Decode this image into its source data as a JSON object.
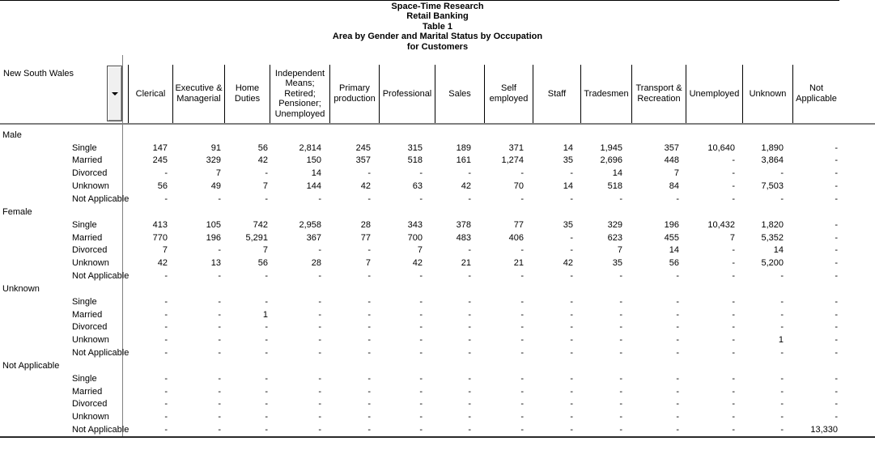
{
  "titles": [
    "Space-Time Research",
    "Retail Banking",
    "Table 1",
    "Area by Gender and Marital Status by Occupation",
    "for Customers"
  ],
  "area_selector": {
    "label": "New South Wales"
  },
  "columns": [
    "Clerical",
    "Executive & Managerial",
    "Home Duties",
    "Independent Means; Retired; Pensioner; Unemployed",
    "Primary production",
    "Professional",
    "Sales",
    "Self employed",
    "Staff",
    "Tradesmen",
    "Transport & Recreation",
    "Unemployed",
    "Unknown",
    "Not Applicable"
  ],
  "groups": [
    {
      "label": "Male",
      "rows": [
        {
          "label": "Single",
          "values": [
            "147",
            "91",
            "56",
            "2,814",
            "245",
            "315",
            "189",
            "371",
            "14",
            "1,945",
            "357",
            "10,640",
            "1,890",
            "-"
          ]
        },
        {
          "label": "Married",
          "values": [
            "245",
            "329",
            "42",
            "150",
            "357",
            "518",
            "161",
            "1,274",
            "35",
            "2,696",
            "448",
            "-",
            "3,864",
            "-"
          ]
        },
        {
          "label": "Divorced",
          "values": [
            "-",
            "7",
            "-",
            "14",
            "-",
            "-",
            "-",
            "-",
            "-",
            "14",
            "7",
            "-",
            "-",
            "-"
          ]
        },
        {
          "label": "Unknown",
          "values": [
            "56",
            "49",
            "7",
            "144",
            "42",
            "63",
            "42",
            "70",
            "14",
            "518",
            "84",
            "-",
            "7,503",
            "-"
          ]
        },
        {
          "label": "Not Applicable",
          "values": [
            "-",
            "-",
            "-",
            "-",
            "-",
            "-",
            "-",
            "-",
            "-",
            "-",
            "-",
            "-",
            "-",
            "-"
          ]
        }
      ]
    },
    {
      "label": "Female",
      "rows": [
        {
          "label": "Single",
          "values": [
            "413",
            "105",
            "742",
            "2,958",
            "28",
            "343",
            "378",
            "77",
            "35",
            "329",
            "196",
            "10,432",
            "1,820",
            "-"
          ]
        },
        {
          "label": "Married",
          "values": [
            "770",
            "196",
            "5,291",
            "367",
            "77",
            "700",
            "483",
            "406",
            "-",
            "623",
            "455",
            "7",
            "5,352",
            "-"
          ]
        },
        {
          "label": "Divorced",
          "values": [
            "7",
            "-",
            "7",
            "-",
            "-",
            "7",
            "-",
            "-",
            "-",
            "7",
            "14",
            "-",
            "14",
            "-"
          ]
        },
        {
          "label": "Unknown",
          "values": [
            "42",
            "13",
            "56",
            "28",
            "7",
            "42",
            "21",
            "21",
            "42",
            "35",
            "56",
            "-",
            "5,200",
            "-"
          ]
        },
        {
          "label": "Not Applicable",
          "values": [
            "-",
            "-",
            "-",
            "-",
            "-",
            "-",
            "-",
            "-",
            "-",
            "-",
            "-",
            "-",
            "-",
            "-"
          ]
        }
      ]
    },
    {
      "label": "Unknown",
      "rows": [
        {
          "label": "Single",
          "values": [
            "-",
            "-",
            "-",
            "-",
            "-",
            "-",
            "-",
            "-",
            "-",
            "-",
            "-",
            "-",
            "-",
            "-"
          ]
        },
        {
          "label": "Married",
          "values": [
            "-",
            "-",
            "1",
            "-",
            "-",
            "-",
            "-",
            "-",
            "-",
            "-",
            "-",
            "-",
            "-",
            "-"
          ]
        },
        {
          "label": "Divorced",
          "values": [
            "-",
            "-",
            "-",
            "-",
            "-",
            "-",
            "-",
            "-",
            "-",
            "-",
            "-",
            "-",
            "-",
            "-"
          ]
        },
        {
          "label": "Unknown",
          "values": [
            "-",
            "-",
            "-",
            "-",
            "-",
            "-",
            "-",
            "-",
            "-",
            "-",
            "-",
            "-",
            "1",
            "-"
          ]
        },
        {
          "label": "Not Applicable",
          "values": [
            "-",
            "-",
            "-",
            "-",
            "-",
            "-",
            "-",
            "-",
            "-",
            "-",
            "-",
            "-",
            "-",
            "-"
          ]
        }
      ]
    },
    {
      "label": "Not Applicable",
      "rows": [
        {
          "label": "Single",
          "values": [
            "-",
            "-",
            "-",
            "-",
            "-",
            "-",
            "-",
            "-",
            "-",
            "-",
            "-",
            "-",
            "-",
            "-"
          ]
        },
        {
          "label": "Married",
          "values": [
            "-",
            "-",
            "-",
            "-",
            "-",
            "-",
            "-",
            "-",
            "-",
            "-",
            "-",
            "-",
            "-",
            "-"
          ]
        },
        {
          "label": "Divorced",
          "values": [
            "-",
            "-",
            "-",
            "-",
            "-",
            "-",
            "-",
            "-",
            "-",
            "-",
            "-",
            "-",
            "-",
            "-"
          ]
        },
        {
          "label": "Unknown",
          "values": [
            "-",
            "-",
            "-",
            "-",
            "-",
            "-",
            "-",
            "-",
            "-",
            "-",
            "-",
            "-",
            "-",
            "-"
          ]
        },
        {
          "label": "Not Applicable",
          "values": [
            "-",
            "-",
            "-",
            "-",
            "-",
            "-",
            "-",
            "-",
            "-",
            "-",
            "-",
            "-",
            "-",
            "13,330"
          ]
        }
      ]
    }
  ]
}
